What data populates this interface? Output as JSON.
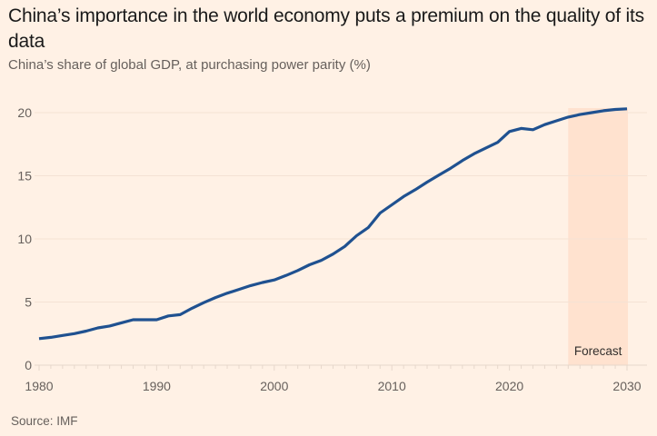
{
  "title": "China’s importance in the world economy puts a premium on the quality of its data",
  "subtitle": "China’s share of global GDP, at purchasing power parity (%)",
  "source": "Source: IMF",
  "colors": {
    "background": "#FFF1E5",
    "line": "#1F5190",
    "forecast_band": "#FFE2CF",
    "gridline": "#F4E2D4",
    "axis_text": "#66605c"
  },
  "chart_data": {
    "type": "line",
    "title": "China’s importance in the world economy puts a premium on the quality of its data",
    "subtitle": "China’s share of global GDP, at purchasing power parity (%)",
    "xlabel": "",
    "ylabel": "",
    "xlim": [
      1980,
      2030
    ],
    "ylim": [
      0,
      20
    ],
    "x_ticks": [
      1980,
      1990,
      2000,
      2010,
      2020,
      2030
    ],
    "x_tick_labels": [
      "1980",
      "1990",
      "2000",
      "2010",
      "2020",
      "2030"
    ],
    "y_ticks": [
      0,
      5,
      10,
      15,
      20
    ],
    "y_tick_labels": [
      "0",
      "5",
      "10",
      "15",
      "20"
    ],
    "grid": true,
    "legend": "none",
    "annotations": [
      {
        "type": "shaded-region",
        "label": "Forecast",
        "x_start": 2025,
        "x_end": 2030
      }
    ],
    "series": [
      {
        "name": "China share of global GDP (PPP, %)",
        "x": [
          1980,
          1981,
          1982,
          1983,
          1984,
          1985,
          1986,
          1987,
          1988,
          1989,
          1990,
          1991,
          1992,
          1993,
          1994,
          1995,
          1996,
          1997,
          1998,
          1999,
          2000,
          2001,
          2002,
          2003,
          2004,
          2005,
          2006,
          2007,
          2008,
          2009,
          2010,
          2011,
          2012,
          2013,
          2014,
          2015,
          2016,
          2017,
          2018,
          2019,
          2020,
          2021,
          2022,
          2023,
          2024,
          2025,
          2026,
          2027,
          2028,
          2029,
          2030
        ],
        "values": [
          2.1,
          2.2,
          2.35,
          2.5,
          2.7,
          2.95,
          3.1,
          3.35,
          3.6,
          3.6,
          3.6,
          3.9,
          4.0,
          4.5,
          4.95,
          5.35,
          5.7,
          6.0,
          6.3,
          6.55,
          6.75,
          7.1,
          7.5,
          7.95,
          8.3,
          8.8,
          9.4,
          10.25,
          10.9,
          12.05,
          12.7,
          13.35,
          13.9,
          14.5,
          15.05,
          15.6,
          16.2,
          16.75,
          17.2,
          17.65,
          18.5,
          18.75,
          18.65,
          19.05,
          19.35,
          19.65,
          19.85,
          20.0,
          20.15,
          20.25,
          20.3
        ]
      }
    ]
  }
}
